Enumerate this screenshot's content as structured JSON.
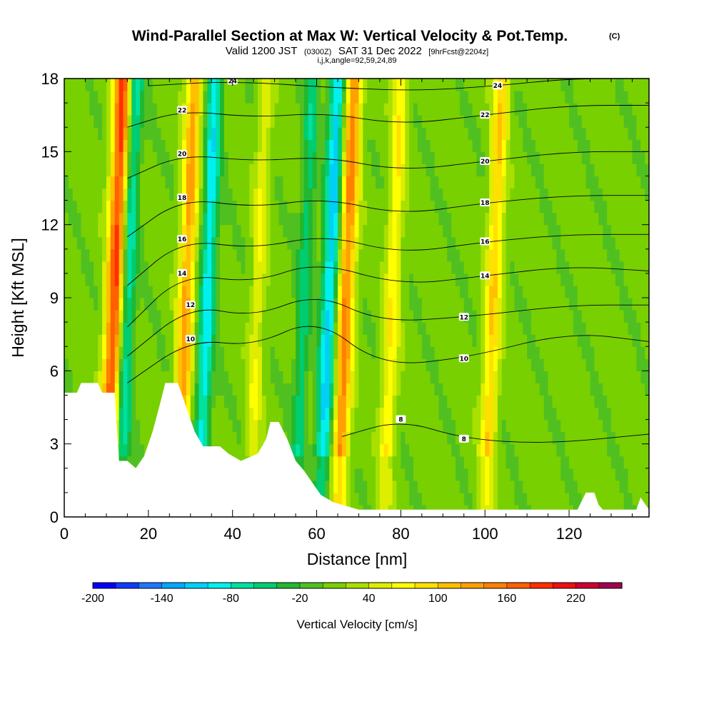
{
  "title": {
    "main": "Wind-Parallel Section at Max W: Vertical Velocity & Pot.Temp.",
    "mark": "(C)",
    "valid_prefix": "Valid 1200 JST",
    "valid_zulu": "(0300Z)",
    "valid_date": "SAT 31 Dec 2022",
    "forecast": "[9hrFcst@2204z]",
    "indices": "i,j,k,angle=92,59,24,89"
  },
  "chart_data": {
    "type": "heatmap",
    "xlabel": "Distance [nm]",
    "ylabel": "Height [Kft MSL]",
    "xlim": [
      0,
      139
    ],
    "ylim": [
      0,
      18
    ],
    "x_ticks": [
      0,
      20,
      40,
      60,
      80,
      100,
      120
    ],
    "y_ticks": [
      0,
      3,
      6,
      9,
      12,
      15,
      18
    ],
    "fill_variable": "vertical_velocity_cm_s",
    "terrain_kft": [
      [
        0,
        5.1
      ],
      [
        3,
        5.1
      ],
      [
        4,
        5.5
      ],
      [
        8,
        5.5
      ],
      [
        9,
        5.1
      ],
      [
        12,
        5.1
      ],
      [
        13,
        2.3
      ],
      [
        15,
        2.3
      ],
      [
        17,
        2.0
      ],
      [
        19,
        2.5
      ],
      [
        21,
        3.5
      ],
      [
        23,
        4.8
      ],
      [
        24,
        5.5
      ],
      [
        27,
        5.5
      ],
      [
        29,
        4.5
      ],
      [
        31,
        3.5
      ],
      [
        33,
        2.9
      ],
      [
        37,
        2.9
      ],
      [
        39,
        2.6
      ],
      [
        42,
        2.3
      ],
      [
        46,
        2.6
      ],
      [
        48,
        3.2
      ],
      [
        49,
        3.9
      ],
      [
        51,
        3.9
      ],
      [
        53,
        3.2
      ],
      [
        55,
        2.3
      ],
      [
        57,
        1.9
      ],
      [
        59,
        1.4
      ],
      [
        61,
        0.9
      ],
      [
        64,
        0.6
      ],
      [
        70,
        0.3
      ],
      [
        122,
        0.3
      ],
      [
        124,
        1.0
      ],
      [
        126,
        1.0
      ],
      [
        127,
        0.5
      ],
      [
        128,
        0.3
      ],
      [
        136,
        0.3
      ],
      [
        137,
        0.8
      ],
      [
        139,
        0.3
      ]
    ],
    "velocity_features": [
      {
        "kind": "updraft",
        "x": 12,
        "w_cm_s": 180
      },
      {
        "kind": "downdraft",
        "x": 15,
        "w_cm_s": -90
      },
      {
        "kind": "updraft",
        "x": 29,
        "w_cm_s": 120
      },
      {
        "kind": "downdraft",
        "x": 34,
        "w_cm_s": -100
      },
      {
        "kind": "updraft",
        "x": 46,
        "w_cm_s": 50
      },
      {
        "kind": "downdraft",
        "x": 57,
        "w_cm_s": -60
      },
      {
        "kind": "downdraft",
        "x": 63,
        "w_cm_s": -120
      },
      {
        "kind": "updraft",
        "x": 67,
        "w_cm_s": 140
      },
      {
        "kind": "updraft",
        "x": 78,
        "w_cm_s": 70
      },
      {
        "kind": "updraft",
        "x": 102,
        "w_cm_s": 90
      }
    ],
    "theta_contours": [
      {
        "label": "8",
        "points": [
          [
            66,
            3.3
          ],
          [
            80,
            4.0
          ],
          [
            95,
            3.2
          ],
          [
            115,
            3.0
          ],
          [
            139,
            3.4
          ]
        ]
      },
      {
        "label": "10",
        "points": [
          [
            15,
            5.5
          ],
          [
            30,
            7.3
          ],
          [
            45,
            7.0
          ],
          [
            60,
            8.2
          ],
          [
            75,
            6.2
          ],
          [
            95,
            6.5
          ],
          [
            120,
            7.6
          ],
          [
            139,
            7.2
          ]
        ]
      },
      {
        "label": "12",
        "points": [
          [
            15,
            6.6
          ],
          [
            30,
            8.7
          ],
          [
            45,
            8.2
          ],
          [
            60,
            9.2
          ],
          [
            75,
            8.0
          ],
          [
            95,
            8.2
          ],
          [
            120,
            8.7
          ],
          [
            139,
            8.7
          ]
        ]
      },
      {
        "label": "14",
        "points": [
          [
            15,
            7.8
          ],
          [
            28,
            10.0
          ],
          [
            45,
            9.6
          ],
          [
            60,
            10.5
          ],
          [
            80,
            9.5
          ],
          [
            100,
            9.9
          ],
          [
            120,
            10.3
          ],
          [
            139,
            10.1
          ]
        ]
      },
      {
        "label": "16",
        "points": [
          [
            15,
            9.5
          ],
          [
            28,
            11.4
          ],
          [
            45,
            11.0
          ],
          [
            62,
            11.6
          ],
          [
            80,
            10.8
          ],
          [
            100,
            11.3
          ],
          [
            120,
            11.6
          ],
          [
            139,
            11.6
          ]
        ]
      },
      {
        "label": "18",
        "points": [
          [
            15,
            11.5
          ],
          [
            28,
            13.1
          ],
          [
            45,
            12.7
          ],
          [
            62,
            13.1
          ],
          [
            80,
            12.4
          ],
          [
            100,
            12.9
          ],
          [
            120,
            13.2
          ],
          [
            139,
            13.2
          ]
        ]
      },
      {
        "label": "20",
        "points": [
          [
            15,
            13.9
          ],
          [
            28,
            14.9
          ],
          [
            45,
            14.6
          ],
          [
            62,
            14.8
          ],
          [
            80,
            14.2
          ],
          [
            100,
            14.6
          ],
          [
            120,
            15.0
          ],
          [
            139,
            15.0
          ]
        ]
      },
      {
        "label": "22",
        "points": [
          [
            15,
            16.0
          ],
          [
            28,
            16.7
          ],
          [
            45,
            16.4
          ],
          [
            62,
            16.6
          ],
          [
            80,
            16.1
          ],
          [
            100,
            16.5
          ],
          [
            120,
            16.9
          ],
          [
            139,
            16.9
          ]
        ]
      },
      {
        "label": "24",
        "points": [
          [
            20,
            17.7
          ],
          [
            40,
            17.9
          ],
          [
            66,
            17.6
          ],
          [
            85,
            17.5
          ],
          [
            103,
            17.7
          ],
          [
            120,
            18.0
          ],
          [
            139,
            18.0
          ]
        ]
      }
    ],
    "colorbar": {
      "title": "Vertical Velocity [cm/s]",
      "min": -200,
      "max": 260,
      "step": 20,
      "tick_labels": [
        "-200",
        "-140",
        "-80",
        "-20",
        "40",
        "100",
        "160",
        "220"
      ],
      "tick_values": [
        -200,
        -140,
        -80,
        -20,
        40,
        100,
        160,
        220
      ],
      "colors": [
        "#0000ff",
        "#0f3cff",
        "#1f78ff",
        "#00a8ff",
        "#00d0f8",
        "#00f0f0",
        "#00e0a0",
        "#00cc70",
        "#20b830",
        "#50c020",
        "#78d000",
        "#a8e000",
        "#ddee00",
        "#ffff00",
        "#ffe000",
        "#ffc000",
        "#ffa000",
        "#ff8000",
        "#ff6000",
        "#ff3000",
        "#ee1010",
        "#cc0033",
        "#a00050"
      ]
    }
  }
}
